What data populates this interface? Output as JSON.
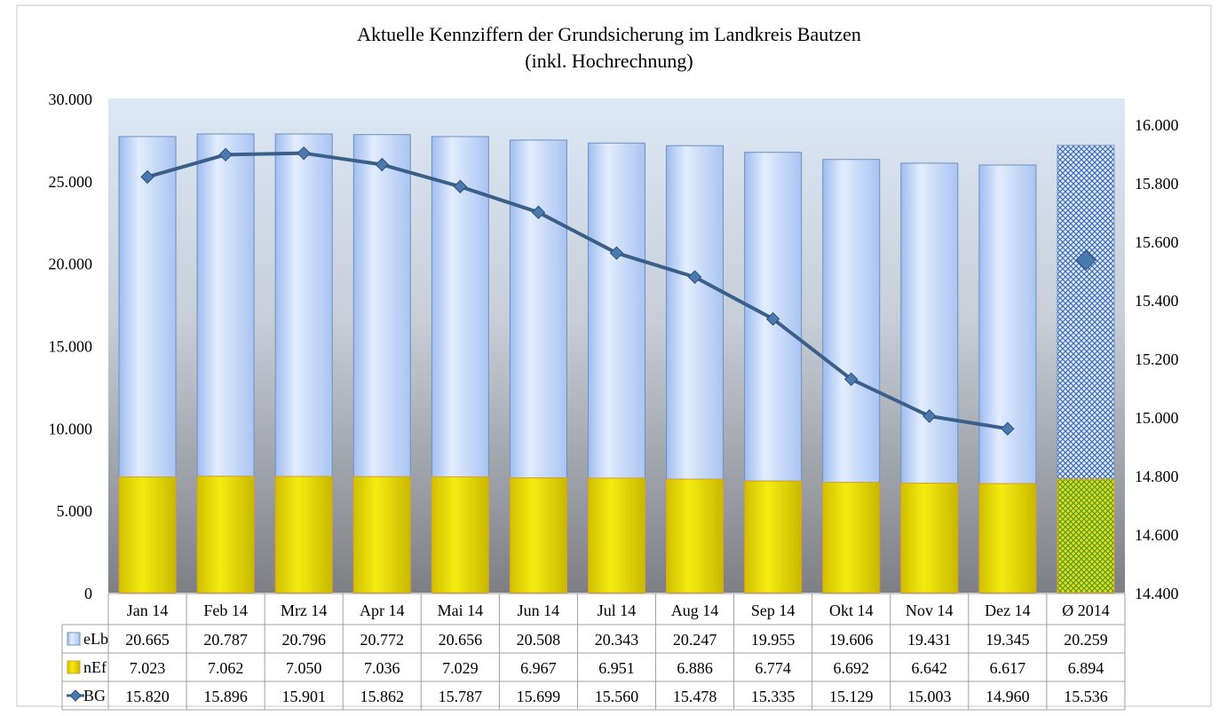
{
  "chart_data": {
    "type": "bar",
    "title": "Aktuelle Kennziffern der Grundsicherung im Landkreis Bautzen",
    "subtitle": "(inkl. Hochrechnung)",
    "stacked": true,
    "categories": [
      "Jan 14",
      "Feb 14",
      "Mrz 14",
      "Apr 14",
      "Mai 14",
      "Jun 14",
      "Jul 14",
      "Aug 14",
      "Sep 14",
      "Okt 14",
      "Nov 14",
      "Dez 14",
      "Ø 2014"
    ],
    "series": [
      {
        "name": "eLb",
        "type": "bar",
        "axis": "left",
        "color": "#bcd5f8",
        "values": [
          20665,
          20787,
          20796,
          20772,
          20656,
          20508,
          20343,
          20247,
          19955,
          19606,
          19431,
          19345,
          20259
        ],
        "labels": [
          "20.665",
          "20.787",
          "20.796",
          "20.772",
          "20.656",
          "20.508",
          "20.343",
          "20.247",
          "19.955",
          "19.606",
          "19.431",
          "19.345",
          "20.259"
        ]
      },
      {
        "name": "nEf",
        "type": "bar",
        "axis": "left",
        "color": "#e6d800",
        "values": [
          7023,
          7062,
          7050,
          7036,
          7029,
          6967,
          6951,
          6886,
          6774,
          6692,
          6642,
          6617,
          6894
        ],
        "labels": [
          "7.023",
          "7.062",
          "7.050",
          "7.036",
          "7.029",
          "6.967",
          "6.951",
          "6.886",
          "6.774",
          "6.692",
          "6.642",
          "6.617",
          "6.894"
        ]
      },
      {
        "name": "BG",
        "type": "line",
        "axis": "right",
        "color": "#3a5f8a",
        "values": [
          15820,
          15896,
          15901,
          15862,
          15787,
          15699,
          15560,
          15478,
          15335,
          15129,
          15003,
          14960,
          15536
        ],
        "labels": [
          "15.820",
          "15.896",
          "15.901",
          "15.862",
          "15.787",
          "15.699",
          "15.560",
          "15.478",
          "15.335",
          "15.129",
          "15.003",
          "14.960",
          "15.536"
        ]
      }
    ],
    "y_left": {
      "min": 0,
      "max": 30000,
      "ticks": [
        0,
        5000,
        10000,
        15000,
        20000,
        25000,
        30000
      ],
      "tick_labels": [
        "0",
        "5.000",
        "10.000",
        "15.000",
        "20.000",
        "25.000",
        "30.000"
      ]
    },
    "y_right": {
      "min": 14400,
      "max": 16000,
      "ticks": [
        14400,
        14600,
        14800,
        15000,
        15200,
        15400,
        15600,
        15800,
        16000
      ],
      "tick_labels": [
        "14.400",
        "14.600",
        "14.800",
        "15.000",
        "15.200",
        "15.400",
        "15.600",
        "15.800",
        "16.000"
      ]
    },
    "legend": "data-table-below",
    "grid": false
  },
  "colors": {
    "plot_top": "#dce8f5",
    "plot_bottom": "#7e7f84",
    "bar_stroke": "#6f8fbf",
    "nef_stroke": "#e0a020",
    "line": "#3a5f8a",
    "marker": "#4a7ab0"
  }
}
